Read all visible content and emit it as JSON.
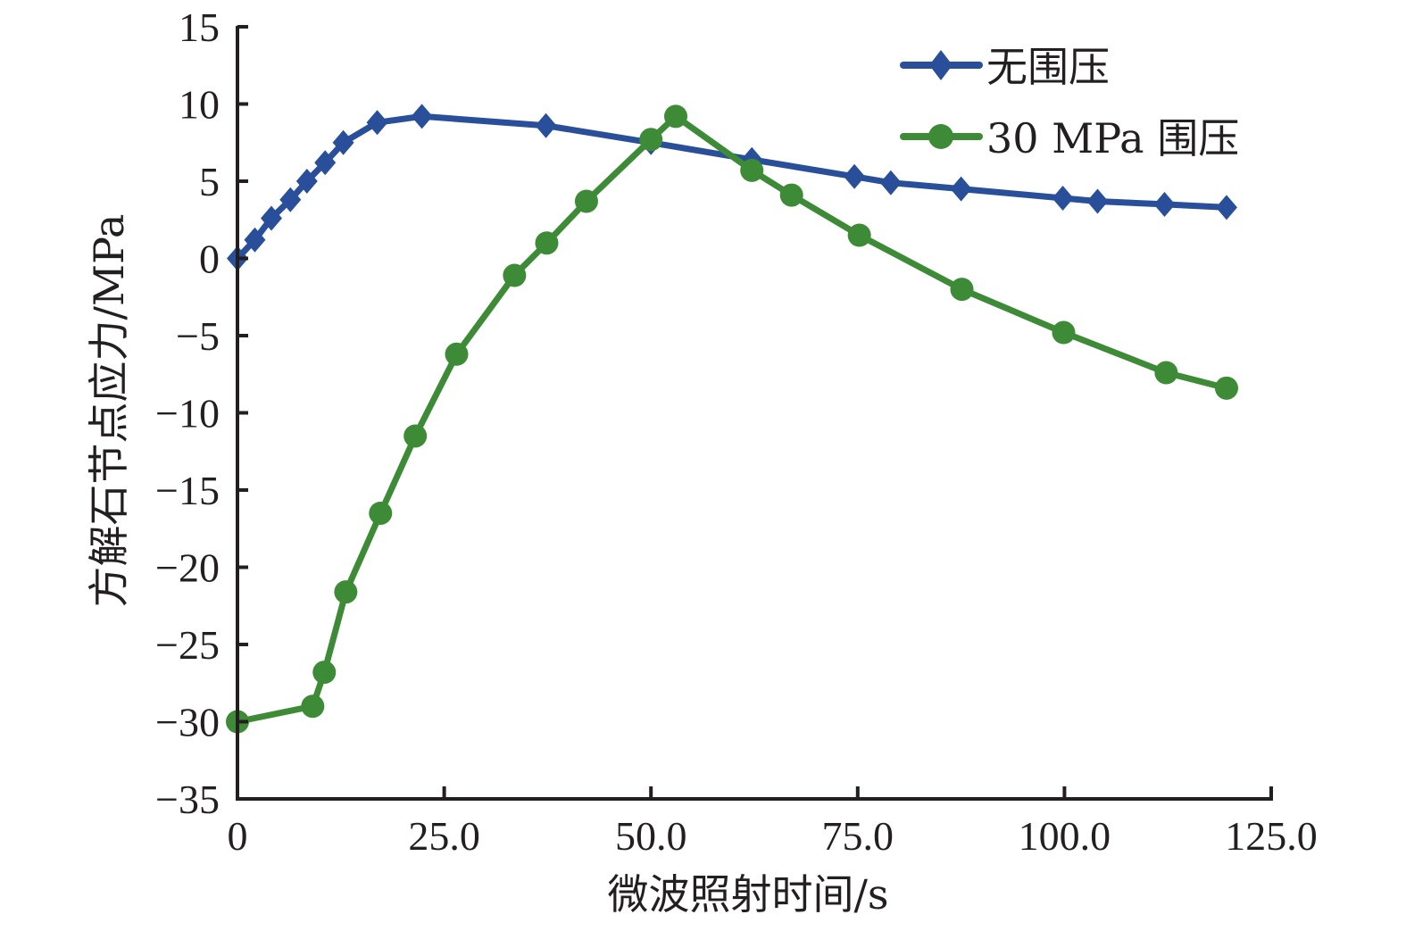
{
  "chart_data": {
    "type": "line",
    "title": "",
    "xlabel": "微波照射时间/s",
    "ylabel": "方解石节点应力/MPa",
    "xlim": [
      0,
      125
    ],
    "ylim": [
      -35,
      15
    ],
    "xticks": [
      0,
      25,
      50,
      75,
      100,
      125
    ],
    "xtick_labels": [
      "0",
      "25.0",
      "50.0",
      "75.0",
      "100.0",
      "125.0"
    ],
    "yticks": [
      15,
      10,
      5,
      0,
      -5,
      -10,
      -15,
      -20,
      -25,
      -30,
      -35
    ],
    "ytick_labels": [
      "15",
      "10",
      "5",
      "0",
      "−5",
      "−10",
      "−15",
      "−20",
      "−25",
      "−30",
      "−35"
    ],
    "grid": false,
    "legend_position": "top-right",
    "series": [
      {
        "name": "无围压",
        "color": "#2a4f9a",
        "marker": "diamond",
        "x": [
          0,
          2.1,
          4.1,
          6.4,
          8.4,
          10.6,
          12.8,
          16.9,
          22.3,
          37.3,
          50.0,
          62.2,
          74.6,
          79.0,
          87.5,
          99.8,
          104.0,
          112.1,
          119.6
        ],
        "y": [
          0,
          1.2,
          2.6,
          3.8,
          5.0,
          6.2,
          7.5,
          8.8,
          9.2,
          8.6,
          7.5,
          6.4,
          5.3,
          4.9,
          4.5,
          3.9,
          3.7,
          3.5,
          3.3
        ]
      },
      {
        "name": "30 MPa 围压",
        "color": "#3d8b37",
        "marker": "circle",
        "x": [
          0,
          9.1,
          10.5,
          13.1,
          17.3,
          21.5,
          26.5,
          33.5,
          37.4,
          42.2,
          50.0,
          53.0,
          62.2,
          67.0,
          75.2,
          87.6,
          99.9,
          112.3,
          119.6
        ],
        "y": [
          -30.0,
          -29.0,
          -26.8,
          -21.6,
          -16.5,
          -11.5,
          -6.2,
          -1.1,
          1.0,
          3.7,
          7.7,
          9.2,
          5.7,
          4.1,
          1.5,
          -2.0,
          -4.8,
          -7.4,
          -8.4
        ]
      }
    ]
  }
}
